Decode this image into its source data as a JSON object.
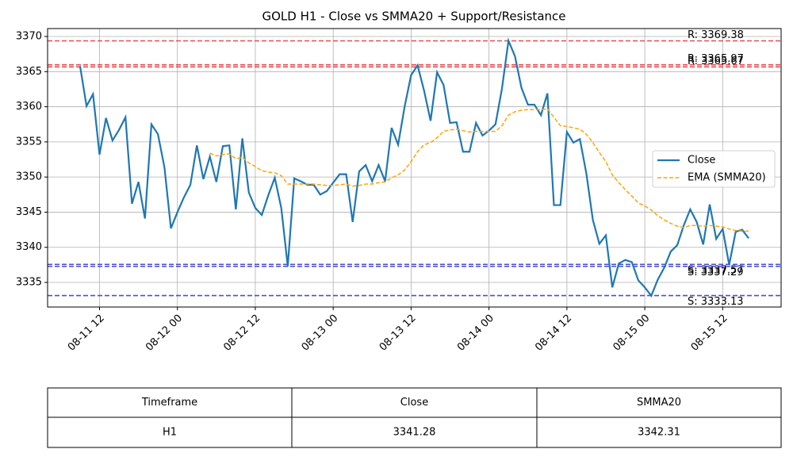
{
  "chart_data": {
    "type": "line",
    "title": "GOLD H1 - Close vs SMMA20 + Support/Resistance",
    "x": [
      "08-11 09",
      "08-11 10",
      "08-11 11",
      "08-11 12",
      "08-11 13",
      "08-11 14",
      "08-11 15",
      "08-11 16",
      "08-11 17",
      "08-11 18",
      "08-11 19",
      "08-11 20",
      "08-11 21",
      "08-11 22",
      "08-11 23",
      "08-12 00",
      "08-12 01",
      "08-12 02",
      "08-12 03",
      "08-12 04",
      "08-12 05",
      "08-12 06",
      "08-12 07",
      "08-12 08",
      "08-12 09",
      "08-12 10",
      "08-12 11",
      "08-12 12",
      "08-12 13",
      "08-12 14",
      "08-12 15",
      "08-12 16",
      "08-12 17",
      "08-12 18",
      "08-12 19",
      "08-12 20",
      "08-12 21",
      "08-12 22",
      "08-12 23",
      "08-13 00",
      "08-13 01",
      "08-13 02",
      "08-13 03",
      "08-13 04",
      "08-13 05",
      "08-13 06",
      "08-13 07",
      "08-13 08",
      "08-13 09",
      "08-13 10",
      "08-13 11",
      "08-13 12",
      "08-13 13",
      "08-13 14",
      "08-13 15",
      "08-13 16",
      "08-13 17",
      "08-13 18",
      "08-13 19",
      "08-13 20",
      "08-13 21",
      "08-13 22",
      "08-13 23",
      "08-14 00",
      "08-14 01",
      "08-14 02",
      "08-14 03",
      "08-14 04",
      "08-14 05",
      "08-14 06",
      "08-14 07",
      "08-14 08",
      "08-14 09",
      "08-14 10",
      "08-14 11",
      "08-14 12",
      "08-14 13",
      "08-14 14",
      "08-14 15",
      "08-14 16",
      "08-14 17",
      "08-14 18",
      "08-14 19",
      "08-14 20",
      "08-14 21",
      "08-14 22",
      "08-14 23",
      "08-15 00",
      "08-15 01",
      "08-15 02",
      "08-15 03",
      "08-15 04",
      "08-15 05",
      "08-15 06",
      "08-15 07",
      "08-15 08",
      "08-15 09",
      "08-15 10",
      "08-15 11",
      "08-15 12",
      "08-15 13",
      "08-15 14",
      "08-15 15",
      "08-15 16"
    ],
    "series": [
      {
        "name": "Close",
        "color": "#1f77b4",
        "dash": false,
        "values": [
          3365.8,
          3360.1,
          3361.8,
          3353.2,
          3358.4,
          3355.2,
          3356.7,
          3358.5,
          3346.2,
          3349.3,
          3344.1,
          3357.5,
          3356.1,
          3351.4,
          3342.7,
          3345.0,
          3347.1,
          3348.9,
          3354.5,
          3349.7,
          3352.9,
          3349.3,
          3354.4,
          3354.5,
          3345.4,
          3355.5,
          3347.8,
          3345.6,
          3344.6,
          3347.4,
          3349.9,
          3345.6,
          3337.3,
          3349.8,
          3349.4,
          3348.9,
          3348.9,
          3347.5,
          3348.0,
          3349.2,
          3350.4,
          3350.4,
          3343.6,
          3350.8,
          3351.7,
          3349.4,
          3351.7,
          3349.4,
          3357.0,
          3354.6,
          3360.0,
          3364.5,
          3365.9,
          3362.3,
          3358.0,
          3364.9,
          3363.1,
          3357.7,
          3357.8,
          3353.6,
          3353.6,
          3357.7,
          3355.9,
          3356.6,
          3357.5,
          3362.6,
          3369.4,
          3367.2,
          3362.7,
          3360.3,
          3360.3,
          3358.8,
          3361.9,
          3346.0,
          3346.0,
          3356.4,
          3354.9,
          3355.4,
          3350.5,
          3343.9,
          3340.5,
          3341.7,
          3334.3,
          3337.7,
          3338.2,
          3337.9,
          3335.3,
          3334.3,
          3333.1,
          3335.4,
          3337.1,
          3339.4,
          3340.3,
          3343.1,
          3345.4,
          3343.6,
          3340.4,
          3346.1,
          3341.2,
          3342.6,
          3337.5,
          3342.2,
          3342.5,
          3341.28
        ]
      },
      {
        "name": "EMA (SMMA20)",
        "color": "orange",
        "dash": true,
        "values": [
          null,
          null,
          null,
          null,
          null,
          null,
          null,
          null,
          null,
          null,
          null,
          null,
          null,
          null,
          null,
          null,
          null,
          null,
          null,
          null,
          3353.4,
          3353.0,
          3353.2,
          3353.3,
          3352.6,
          3352.8,
          3352.0,
          3351.5,
          3350.9,
          3350.7,
          3350.6,
          3350.2,
          3349.0,
          3349.0,
          3349.0,
          3349.0,
          3349.0,
          3348.9,
          3348.8,
          3348.8,
          3348.9,
          3349.0,
          3348.7,
          3348.8,
          3349.0,
          3349.0,
          3349.2,
          3349.3,
          3349.9,
          3350.3,
          3351.0,
          3352.2,
          3353.6,
          3354.6,
          3354.9,
          3355.6,
          3356.5,
          3356.7,
          3356.8,
          3356.6,
          3356.4,
          3356.5,
          3356.5,
          3356.5,
          3356.5,
          3357.3,
          3358.8,
          3359.3,
          3359.5,
          3359.6,
          3359.6,
          3359.6,
          3359.7,
          3358.5,
          3357.3,
          3357.2,
          3357.0,
          3356.8,
          3356.1,
          3354.9,
          3353.5,
          3352.2,
          3350.3,
          3349.2,
          3348.2,
          3347.3,
          3346.3,
          3345.9,
          3345.3,
          3344.5,
          3343.9,
          3343.4,
          3343.0,
          3342.8,
          3343.1,
          3343.1,
          3343.0,
          3343.1,
          3343.0,
          3342.9,
          3342.6,
          3342.4,
          3342.3,
          3342.31
        ]
      }
    ],
    "levels": [
      {
        "label": "R: 3369.38",
        "value": 3369.38,
        "color": "#e8383d"
      },
      {
        "label": "R: 3365.97",
        "value": 3365.97,
        "color": "#e8383d"
      },
      {
        "label": "R: 3365.67",
        "value": 3365.67,
        "color": "#e8383d"
      },
      {
        "label": "S: 3337.57",
        "value": 3337.57,
        "color": "#3a3ad0"
      },
      {
        "label": "S: 3337.29",
        "value": 3337.29,
        "color": "#3a3ad0"
      },
      {
        "label": "S: 3333.13",
        "value": 3333.13,
        "color": "#3a3ad0"
      }
    ],
    "xlim": [
      "08-11 04",
      "08-15 21"
    ],
    "xticks": [
      "08-11 12",
      "08-12 00",
      "08-12 12",
      "08-13 00",
      "08-13 12",
      "08-14 00",
      "08-14 12",
      "08-15 00",
      "08-15 12"
    ],
    "ylim": [
      3331.5,
      3371.13
    ],
    "yticks": [
      3335,
      3340,
      3345,
      3350,
      3355,
      3360,
      3365,
      3370
    ],
    "grid": true,
    "legend": "center right"
  },
  "table": {
    "header": [
      "Timeframe",
      "Close",
      "SMMA20"
    ],
    "rows": [
      [
        "H1",
        3341.28,
        3342.31
      ]
    ]
  }
}
